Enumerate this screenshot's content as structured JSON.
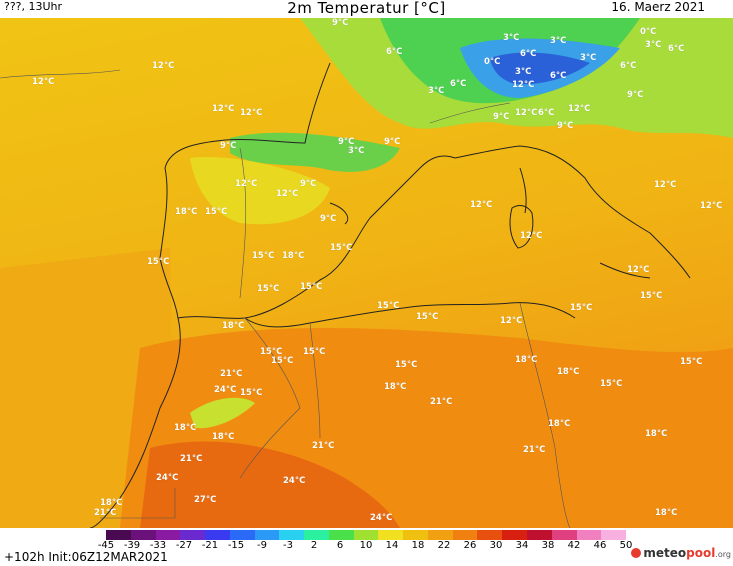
{
  "header": {
    "left": "???, 13Uhr",
    "title": "2m Temperatur [°C]",
    "date": "16. Maerz 2021"
  },
  "footer": {
    "run_info": "+102h  Init:06Z12MAR2021",
    "logo_main": "meteo",
    "logo_accent": "pool",
    "logo_suffix": ".org"
  },
  "scale": {
    "ticks": [
      "-45",
      "-39",
      "-33",
      "-27",
      "-21",
      "-15",
      "-9",
      "-3",
      "2",
      "6",
      "10",
      "14",
      "18",
      "22",
      "26",
      "30",
      "34",
      "38",
      "42",
      "46",
      "50"
    ],
    "colors": [
      "#4a0a52",
      "#6a127a",
      "#8a1aa2",
      "#6a2ad0",
      "#3a3af0",
      "#2a6af6",
      "#2a9af6",
      "#2ad0f0",
      "#2af0a0",
      "#4ae04a",
      "#a0e030",
      "#f0e020",
      "#f0c010",
      "#f0a010",
      "#f08010",
      "#e85010",
      "#d82010",
      "#c01030",
      "#e04080",
      "#f080c0",
      "#f8b0e0"
    ]
  },
  "map_labels": [
    "12°C",
    "12°C",
    "12°C",
    "12°C",
    "12°C",
    "12°C",
    "12°C",
    "12°C",
    "12°C",
    "12°C",
    "12°C",
    "12°C",
    "12°C",
    "12°C",
    "12°C",
    "9°C",
    "9°C",
    "9°C",
    "9°C",
    "9°C",
    "9°C",
    "9°C",
    "9°C",
    "9°C",
    "6°C",
    "6°C",
    "6°C",
    "6°C",
    "6°C",
    "6°C",
    "6°C",
    "3°C",
    "3°C",
    "3°C",
    "3°C",
    "3°C",
    "3°C",
    "3°C",
    "0°C",
    "0°C",
    "15°C",
    "15°C",
    "15°C",
    "15°C",
    "15°C",
    "15°C",
    "15°C",
    "15°C",
    "15°C",
    "15°C",
    "15°C",
    "15°C",
    "15°C",
    "15°C",
    "15°C",
    "15°C",
    "15°C",
    "18°C",
    "18°C",
    "18°C",
    "18°C",
    "18°C",
    "18°C",
    "18°C",
    "18°C",
    "18°C",
    "18°C",
    "18°C",
    "18°C",
    "21°C",
    "21°C",
    "21°C",
    "21°C",
    "21°C",
    "21°C",
    "24°C",
    "24°C",
    "24°C",
    "24°C",
    "27°C"
  ]
}
